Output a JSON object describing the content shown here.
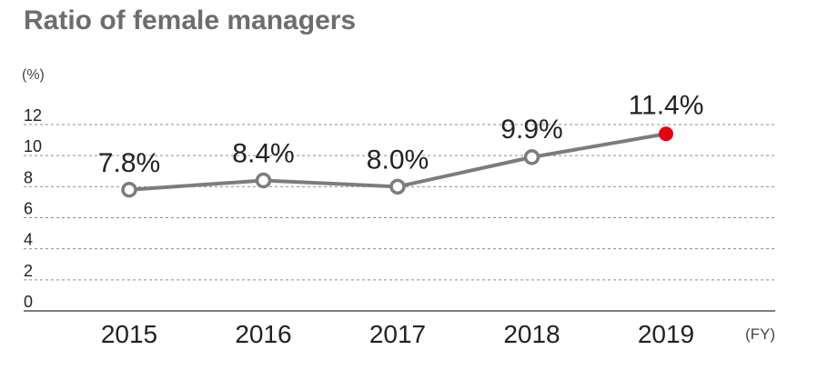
{
  "title": "Ratio of female managers",
  "unit_label": "(%)",
  "fy_label": "(FY)",
  "colors": {
    "line": "#7a7d80",
    "marker_fill": "#ffffff",
    "highlight": "#e60012",
    "grid": "#8c8c8c",
    "axis": "#555555",
    "text": "#222222",
    "title": "#6d6d6d"
  },
  "chart_data": {
    "type": "line",
    "title": "Ratio of female managers",
    "xlabel": "(FY)",
    "ylabel": "(%)",
    "categories": [
      "2015",
      "2016",
      "2017",
      "2018",
      "2019"
    ],
    "series": [
      {
        "values": [
          7.8,
          8.4,
          8.0,
          9.9,
          11.4
        ],
        "labels": [
          "7.8%",
          "8.4%",
          "8.0%",
          "9.9%",
          "11.4%"
        ],
        "highlight_index": 4
      }
    ],
    "yticks": [
      0,
      2,
      4,
      6,
      8,
      10,
      12
    ],
    "ylim": [
      0,
      12
    ],
    "grid": true,
    "grid_style": "dashed horizontal"
  }
}
